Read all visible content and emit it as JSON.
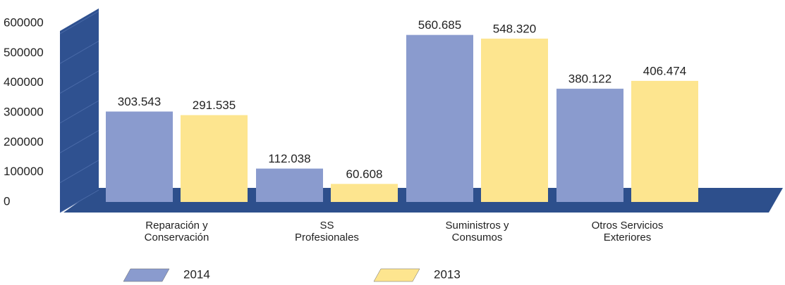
{
  "chart_data": {
    "type": "bar",
    "categories": [
      "Reparación y\nConservación",
      "SS\nProfesionales",
      "Suministros y\nConsumos",
      "Otros Servicios\nExteriores"
    ],
    "series": [
      {
        "name": "2014",
        "color": "#8a9bce",
        "values": [
          303543,
          112038,
          560685,
          380122
        ],
        "value_labels": [
          "303.543",
          "112.038",
          "560.685",
          "380.122"
        ]
      },
      {
        "name": "2013",
        "color": "#fde58f",
        "values": [
          291535,
          60608,
          548320,
          406474
        ],
        "value_labels": [
          "291.535",
          "60.608",
          "548.320",
          "406.474"
        ]
      }
    ],
    "ylim": [
      0,
      600000
    ],
    "yticks": [
      0,
      100000,
      200000,
      300000,
      400000,
      500000,
      600000
    ],
    "grid": true,
    "legend": "bottom"
  }
}
